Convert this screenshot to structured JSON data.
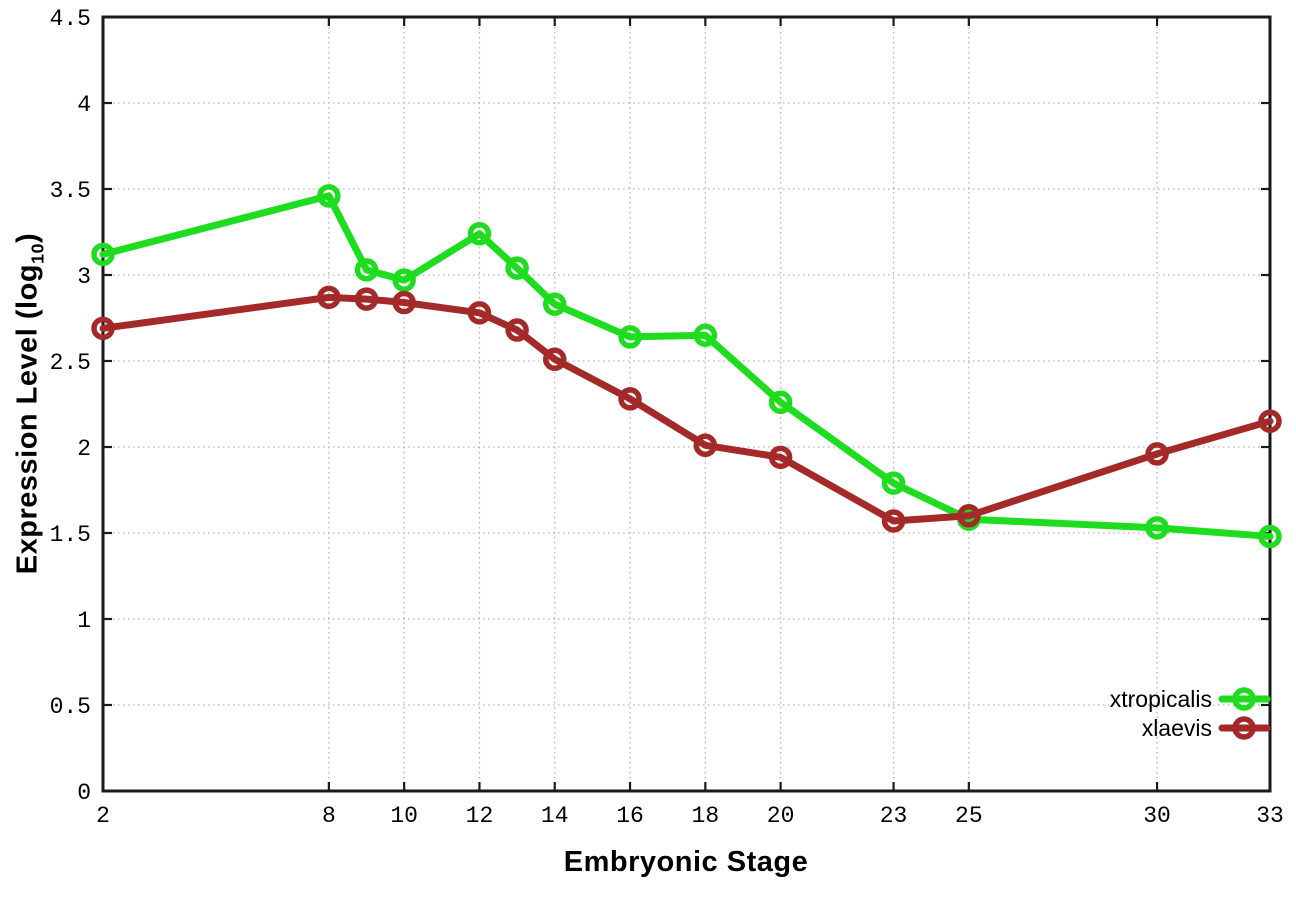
{
  "chart_data": {
    "type": "line",
    "title": "",
    "xlabel": "Embryonic Stage",
    "ylabel": {
      "prefix": "Expression Level (log",
      "sub": "10",
      "suffix": ")"
    },
    "xlim": [
      2,
      33
    ],
    "ylim": [
      0,
      4.5
    ],
    "x_ticks": [
      2,
      8,
      10,
      12,
      14,
      16,
      18,
      20,
      23,
      25,
      30,
      33
    ],
    "y_ticks": [
      0,
      0.5,
      1,
      1.5,
      2,
      2.5,
      3,
      3.5,
      4,
      4.5
    ],
    "grid": true,
    "legend_position": "inside bottom-right",
    "x": [
      2,
      8,
      9,
      10,
      12,
      13,
      14,
      16,
      18,
      20,
      23,
      25,
      30,
      33
    ],
    "series": [
      {
        "name": "xtropicalis",
        "color": "#1edc1e",
        "marker": "open-circle",
        "values": [
          3.12,
          3.46,
          3.03,
          2.97,
          3.24,
          3.04,
          2.83,
          2.64,
          2.65,
          2.26,
          1.79,
          1.58,
          1.53,
          1.48
        ]
      },
      {
        "name": "xlaevis",
        "color": "#a42a2a",
        "marker": "open-circle",
        "values": [
          2.69,
          2.87,
          2.86,
          2.84,
          2.78,
          2.68,
          2.51,
          2.28,
          2.01,
          1.94,
          1.57,
          1.6,
          1.96,
          2.15
        ]
      }
    ],
    "colors": {
      "grid": "#b3b3b3",
      "axis": "#1a1a1a",
      "text": "#000000",
      "background": "#ffffff"
    }
  }
}
